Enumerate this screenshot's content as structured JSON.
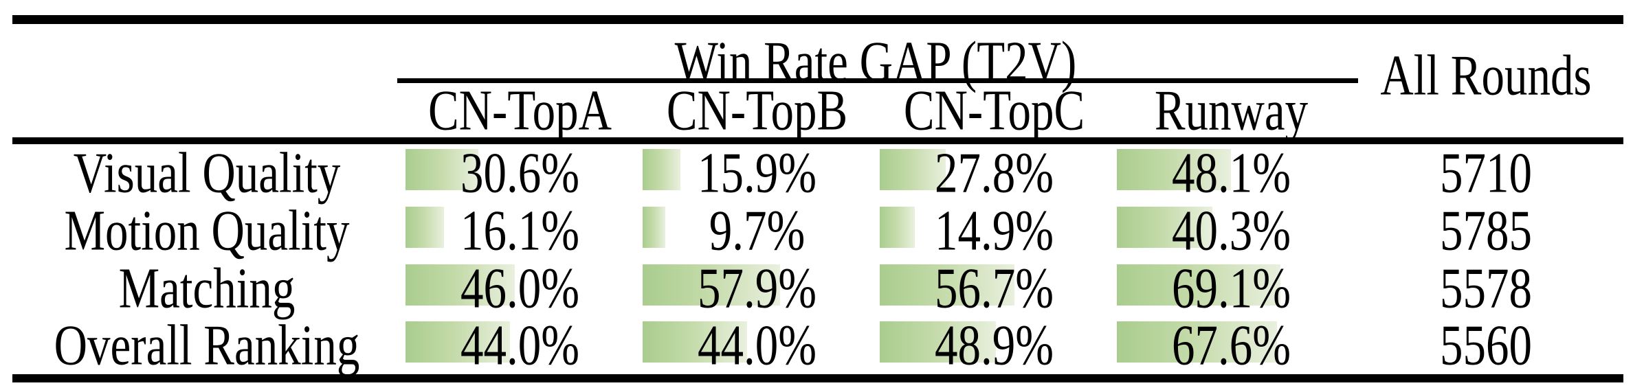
{
  "header": {
    "group_title": "Win Rate GAP (T2V)",
    "all_rounds_label": "All Rounds",
    "columns": [
      "CN-TopA",
      "CN-TopB",
      "CN-TopC",
      "Runway"
    ]
  },
  "rows": [
    {
      "label": "Visual Quality",
      "values": [
        30.6,
        15.9,
        27.8,
        48.1
      ],
      "display": [
        "30.6%",
        "15.9%",
        "27.8%",
        "48.1%"
      ],
      "all_rounds": "5710"
    },
    {
      "label": "Motion Quality",
      "values": [
        16.1,
        9.7,
        14.9,
        40.3
      ],
      "display": [
        "16.1%",
        "9.7%",
        "14.9%",
        "40.3%"
      ],
      "all_rounds": "5785"
    },
    {
      "label": "Matching",
      "values": [
        46.0,
        57.9,
        56.7,
        69.1
      ],
      "display": [
        "46.0%",
        "57.9%",
        "56.7%",
        "69.1%"
      ],
      "all_rounds": "5578"
    },
    {
      "label": "Overall Ranking",
      "values": [
        44.0,
        44.0,
        48.9,
        67.6
      ],
      "display": [
        "44.0%",
        "44.0%",
        "48.9%",
        "67.6%"
      ],
      "all_rounds": "5560"
    }
  ],
  "colors": {
    "bar_gradient_start": "#a9cd8e",
    "bar_gradient_end": "#e9f0de",
    "rule_color": "#000000",
    "text_color": "#000000",
    "background": "#ffffff"
  },
  "chart_data": {
    "type": "table",
    "title": "Win Rate GAP (T2V)",
    "categories": [
      "Visual Quality",
      "Motion Quality",
      "Matching",
      "Overall Ranking"
    ],
    "series": [
      {
        "name": "CN-TopA",
        "values": [
          30.6,
          16.1,
          46.0,
          44.0
        ]
      },
      {
        "name": "CN-TopB",
        "values": [
          15.9,
          9.7,
          57.9,
          44.0
        ]
      },
      {
        "name": "CN-TopC",
        "values": [
          27.8,
          14.9,
          56.7,
          48.9
        ]
      },
      {
        "name": "Runway",
        "values": [
          48.1,
          40.3,
          69.1,
          67.6
        ]
      }
    ],
    "extra_column": {
      "name": "All Rounds",
      "values": [
        5710,
        5785,
        5578,
        5560
      ]
    },
    "unit": "%",
    "bar_scale": [
      0,
      100
    ],
    "bar_style": "green gradient data bars, left-aligned in cell, width proportional to value"
  }
}
